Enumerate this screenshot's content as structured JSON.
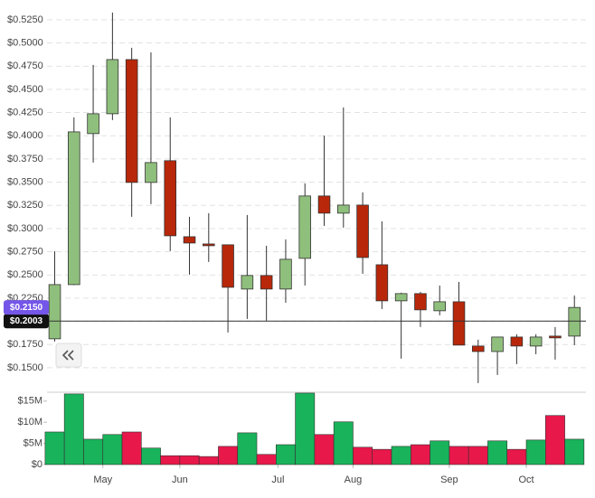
{
  "chart_data": {
    "type": "candlestick",
    "up_color": "#8fbf7c",
    "down_color": "#b8270a",
    "volume_up_color": "#19b35b",
    "volume_down_color": "#e8184a",
    "ylim": [
      0.1275,
      0.5385
    ],
    "yticks": [
      {
        "value": 0.15,
        "label": "$0.1500"
      },
      {
        "value": 0.175,
        "label": "$0.1750"
      },
      {
        "value": 0.2,
        "label": "$0.2000"
      },
      {
        "value": 0.225,
        "label": "$0.2250"
      },
      {
        "value": 0.25,
        "label": "$0.2500"
      },
      {
        "value": 0.275,
        "label": "$0.2750"
      },
      {
        "value": 0.3,
        "label": "$0.3000"
      },
      {
        "value": 0.325,
        "label": "$0.3250"
      },
      {
        "value": 0.35,
        "label": "$0.3500"
      },
      {
        "value": 0.375,
        "label": "$0.3750"
      },
      {
        "value": 0.4,
        "label": "$0.4000"
      },
      {
        "value": 0.425,
        "label": "$0.4250"
      },
      {
        "value": 0.45,
        "label": "$0.4500"
      },
      {
        "value": 0.475,
        "label": "$0.4750"
      },
      {
        "value": 0.5,
        "label": "$0.5000"
      },
      {
        "value": 0.525,
        "label": "$0.5250"
      }
    ],
    "grid": true,
    "xlim": [
      -0.4,
      27.6
    ],
    "xticks": [
      {
        "value": 2.5,
        "label": "May"
      },
      {
        "value": 6.5,
        "label": "Jun"
      },
      {
        "value": 11.6,
        "label": "Jul"
      },
      {
        "value": 15.5,
        "label": "Aug"
      },
      {
        "value": 20.5,
        "label": "Sep"
      },
      {
        "value": 24.5,
        "label": "Oct"
      }
    ],
    "open": [
      0.1812,
      0.2396,
      0.4023,
      0.4237,
      0.4821,
      0.3497,
      0.3731,
      0.2912,
      0.2834,
      0.2825,
      0.2348,
      0.2494,
      0.2348,
      0.2679,
      0.3351,
      0.3166,
      0.3253,
      0.261,
      0.2221,
      0.2299,
      0.2114,
      0.2211,
      0.1734,
      0.1675,
      0.1831,
      0.1734,
      0.1841,
      0.1841
    ],
    "high": [
      0.2757,
      0.4198,
      0.4763,
      0.5328,
      0.4948,
      0.4899,
      0.4198,
      0.3127,
      0.3166,
      0.2825,
      0.3146,
      0.2815,
      0.2883,
      0.3487,
      0.4003,
      0.4305,
      0.339,
      0.3078,
      0.2309,
      0.2318,
      0.2386,
      0.2425,
      0.1802,
      0.1831,
      0.1861,
      0.1861,
      0.1939,
      0.2279
    ],
    "low": [
      0.1783,
      0.239,
      0.3711,
      0.4169,
      0.3127,
      0.3263,
      0.2757,
      0.2503,
      0.264,
      0.188,
      0.2026,
      0.2007,
      0.2201,
      0.2386,
      0.3029,
      0.301,
      0.2513,
      0.2133,
      0.1598,
      0.1939,
      0.2065,
      0.1744,
      0.1335,
      0.1422,
      0.1539,
      0.1646,
      0.1588,
      0.1744
    ],
    "close": [
      0.2396,
      0.4042,
      0.4237,
      0.4821,
      0.3497,
      0.3711,
      0.2922,
      0.2844,
      0.2815,
      0.2367,
      0.2494,
      0.2348,
      0.2669,
      0.3351,
      0.3166,
      0.3253,
      0.2688,
      0.2221,
      0.2299,
      0.2124,
      0.2211,
      0.1744,
      0.1675,
      0.1831,
      0.1734,
      0.1831,
      0.1822,
      0.215
    ],
    "last_close": {
      "value": 0.215,
      "label": "$0.2150"
    },
    "current_price": {
      "value": 0.2003,
      "label": "$0.2003"
    },
    "volume": {
      "values": [
        7700000,
        16700000,
        6000000,
        7100000,
        7700000,
        3900000,
        2100000,
        2100000,
        1900000,
        4300000,
        7500000,
        2400000,
        4700000,
        16900000,
        7100000,
        10100000,
        4100000,
        3600000,
        4300000,
        4700000,
        5600000,
        4300000,
        4300000,
        5600000,
        3600000,
        5800000,
        11600000,
        6000000
      ],
      "ylim": [
        0,
        17100000
      ],
      "yticks": [
        {
          "value": 0,
          "label": "$0"
        },
        {
          "value": 5000000,
          "label": "$5M"
        },
        {
          "value": 10000000,
          "label": "$10M"
        },
        {
          "value": 15000000,
          "label": "$15M"
        }
      ]
    }
  }
}
